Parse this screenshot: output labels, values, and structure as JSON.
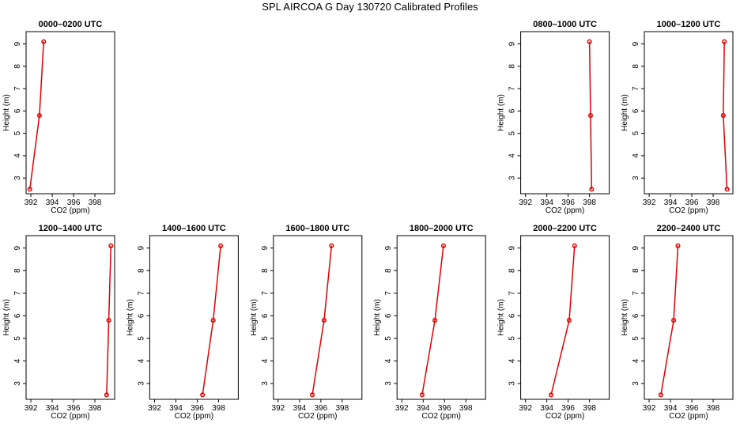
{
  "title": "SPL AIRCOA G  Day 130720  Calibrated Profiles",
  "chart_data": [
    {
      "type": "line",
      "title": "0000–0200 UTC",
      "x_label": "CO2 (ppm)",
      "y_label": "Height (m)",
      "color": "#e00000",
      "x": [
        391.9,
        392.8,
        393.2
      ],
      "values": [
        2.5,
        5.8,
        9.1
      ],
      "xlim": [
        391.55,
        399.85
      ],
      "xticks": [
        392,
        394,
        396,
        398
      ],
      "ylim": [
        2.3,
        9.55
      ],
      "yticks": [
        3,
        4,
        5,
        6,
        7,
        8,
        9
      ]
    },
    {
      "type": "line",
      "title": "0800–1000 UTC",
      "x_label": "CO2 (ppm)",
      "y_label": "Height (m)",
      "color": "#e00000",
      "x": [
        398.2,
        398.1,
        398.0
      ],
      "values": [
        2.5,
        5.8,
        9.1
      ],
      "xlim": [
        391.55,
        399.85
      ],
      "xticks": [
        392,
        394,
        396,
        398
      ],
      "ylim": [
        2.3,
        9.55
      ],
      "yticks": [
        3,
        4,
        5,
        6,
        7,
        8,
        9
      ]
    },
    {
      "type": "line",
      "title": "1000–1200 UTC",
      "x_label": "CO2 (ppm)",
      "y_label": "Height (m)",
      "color": "#e00000",
      "x": [
        399.3,
        398.95,
        399.05
      ],
      "values": [
        2.5,
        5.8,
        9.1
      ],
      "xlim": [
        391.55,
        399.85
      ],
      "xticks": [
        392,
        394,
        396,
        398
      ],
      "ylim": [
        2.3,
        9.55
      ],
      "yticks": [
        3,
        4,
        5,
        6,
        7,
        8,
        9
      ]
    },
    {
      "type": "line",
      "title": "1200–1400 UTC",
      "x_label": "CO2 (ppm)",
      "y_label": "Height (m)",
      "color": "#e00000",
      "x": [
        399.1,
        399.3,
        399.5
      ],
      "values": [
        2.5,
        5.8,
        9.1
      ],
      "xlim": [
        391.55,
        399.85
      ],
      "xticks": [
        392,
        394,
        396,
        398
      ],
      "ylim": [
        2.3,
        9.55
      ],
      "yticks": [
        3,
        4,
        5,
        6,
        7,
        8,
        9
      ]
    },
    {
      "type": "line",
      "title": "1400–1600 UTC",
      "x_label": "CO2 (ppm)",
      "y_label": "Height (m)",
      "color": "#e00000",
      "x": [
        396.5,
        397.5,
        398.2
      ],
      "values": [
        2.5,
        5.8,
        9.1
      ],
      "xlim": [
        391.55,
        399.85
      ],
      "xticks": [
        392,
        394,
        396,
        398
      ],
      "ylim": [
        2.3,
        9.55
      ],
      "yticks": [
        3,
        4,
        5,
        6,
        7,
        8,
        9
      ]
    },
    {
      "type": "line",
      "title": "1600–1800 UTC",
      "x_label": "CO2 (ppm)",
      "y_label": "Height (m)",
      "color": "#e00000",
      "x": [
        395.2,
        396.3,
        397.0
      ],
      "values": [
        2.5,
        5.8,
        9.1
      ],
      "xlim": [
        391.55,
        399.85
      ],
      "xticks": [
        392,
        394,
        396,
        398
      ],
      "ylim": [
        2.3,
        9.55
      ],
      "yticks": [
        3,
        4,
        5,
        6,
        7,
        8,
        9
      ]
    },
    {
      "type": "line",
      "title": "1800–2000 UTC",
      "x_label": "CO2 (ppm)",
      "y_label": "Height (m)",
      "color": "#e00000",
      "x": [
        393.9,
        395.1,
        395.9
      ],
      "values": [
        2.5,
        5.8,
        9.1
      ],
      "xlim": [
        391.55,
        399.85
      ],
      "xticks": [
        392,
        394,
        396,
        398
      ],
      "ylim": [
        2.3,
        9.55
      ],
      "yticks": [
        3,
        4,
        5,
        6,
        7,
        8,
        9
      ]
    },
    {
      "type": "line",
      "title": "2000–2200 UTC",
      "x_label": "CO2 (ppm)",
      "y_label": "Height (m)",
      "color": "#e00000",
      "x": [
        394.4,
        396.1,
        396.6
      ],
      "values": [
        2.5,
        5.8,
        9.1
      ],
      "xlim": [
        391.55,
        399.85
      ],
      "xticks": [
        392,
        394,
        396,
        398
      ],
      "ylim": [
        2.3,
        9.55
      ],
      "yticks": [
        3,
        4,
        5,
        6,
        7,
        8,
        9
      ]
    },
    {
      "type": "line",
      "title": "2200–2400 UTC",
      "x_label": "CO2 (ppm)",
      "y_label": "Height (m)",
      "color": "#e00000",
      "x": [
        393.1,
        394.3,
        394.7
      ],
      "values": [
        2.5,
        5.8,
        9.1
      ],
      "xlim": [
        391.55,
        399.85
      ],
      "xticks": [
        392,
        394,
        396,
        398
      ],
      "ylim": [
        2.3,
        9.55
      ],
      "yticks": [
        3,
        4,
        5,
        6,
        7,
        8,
        9
      ]
    }
  ]
}
